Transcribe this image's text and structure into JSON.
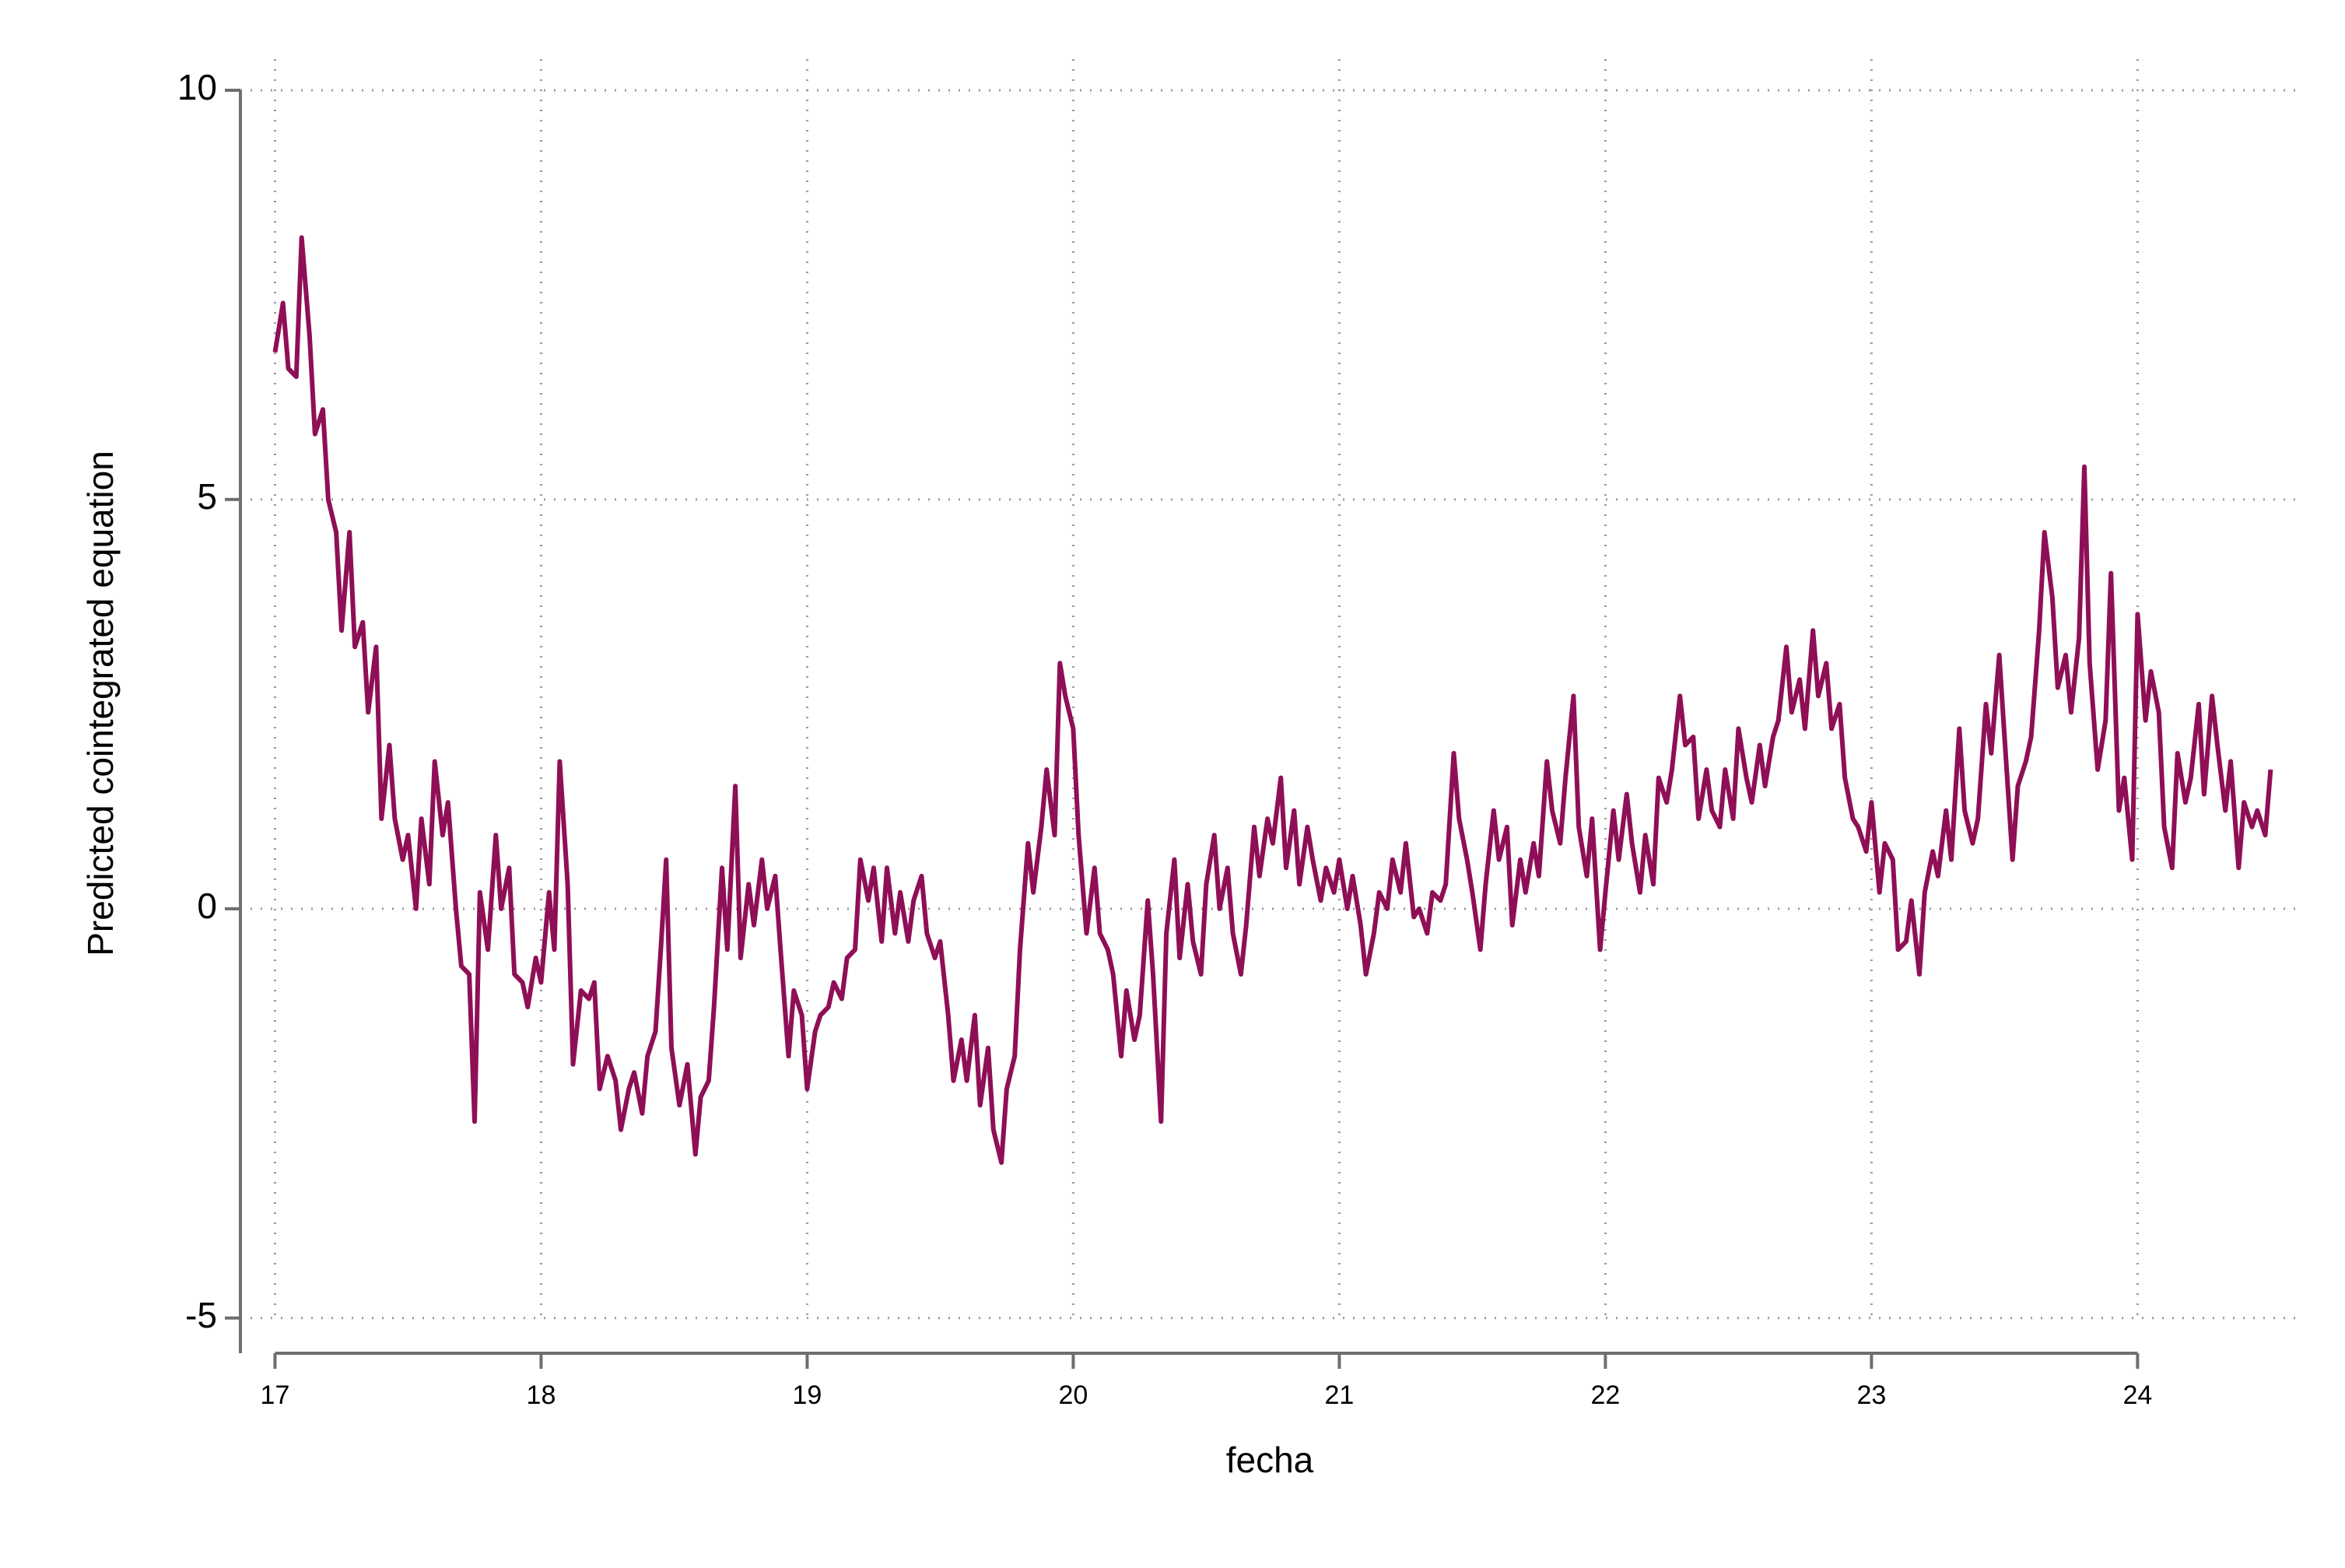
{
  "chart_data": {
    "type": "line",
    "x_label": "fecha",
    "y_label": "Predicted cointegrated equation",
    "xlim": [
      16.87,
      24.61
    ],
    "ylim": [
      -5.43,
      10
    ],
    "xticks": [
      17,
      18,
      19,
      20,
      21,
      22,
      23,
      24
    ],
    "yticks": [
      -5,
      0,
      5,
      10
    ],
    "grid": true,
    "series": [
      {
        "color": "#8f0f56",
        "x": [
          17.0,
          17.03,
          17.05,
          17.08,
          17.1,
          17.13,
          17.15,
          17.18,
          17.2,
          17.23,
          17.25,
          17.28,
          17.3,
          17.33,
          17.35,
          17.38,
          17.4,
          17.43,
          17.45,
          17.48,
          17.5,
          17.53,
          17.55,
          17.58,
          17.6,
          17.63,
          17.65,
          17.68,
          17.7,
          17.73,
          17.75,
          17.77,
          17.8,
          17.83,
          17.85,
          17.88,
          17.9,
          17.93,
          17.95,
          17.98,
          18.0,
          18.03,
          18.05,
          18.07,
          18.1,
          18.12,
          18.15,
          18.18,
          18.2,
          18.22,
          18.25,
          18.28,
          18.3,
          18.33,
          18.35,
          18.38,
          18.4,
          18.43,
          18.45,
          18.47,
          18.49,
          18.52,
          18.55,
          18.58,
          18.6,
          18.63,
          18.65,
          18.68,
          18.7,
          18.73,
          18.75,
          18.78,
          18.8,
          18.83,
          18.85,
          18.88,
          18.9,
          18.93,
          18.95,
          18.98,
          19.0,
          19.03,
          19.05,
          19.08,
          19.1,
          19.13,
          19.15,
          19.18,
          19.2,
          19.23,
          19.25,
          19.28,
          19.3,
          19.33,
          19.35,
          19.38,
          19.4,
          19.43,
          19.45,
          19.48,
          19.5,
          19.53,
          19.55,
          19.58,
          19.6,
          19.63,
          19.65,
          19.68,
          19.7,
          19.73,
          19.75,
          19.78,
          19.8,
          19.83,
          19.85,
          19.88,
          19.9,
          19.93,
          19.95,
          19.97,
          20.0,
          20.02,
          20.05,
          20.08,
          20.1,
          20.13,
          20.15,
          20.18,
          20.2,
          20.23,
          20.25,
          20.28,
          20.3,
          20.33,
          20.35,
          20.38,
          20.4,
          20.43,
          20.45,
          20.48,
          20.5,
          20.53,
          20.55,
          20.58,
          20.6,
          20.63,
          20.65,
          20.68,
          20.7,
          20.73,
          20.75,
          20.78,
          20.8,
          20.83,
          20.85,
          20.88,
          20.9,
          20.93,
          20.95,
          20.98,
          21.0,
          21.03,
          21.05,
          21.08,
          21.1,
          21.13,
          21.15,
          21.18,
          21.2,
          21.23,
          21.25,
          21.28,
          21.3,
          21.33,
          21.35,
          21.38,
          21.4,
          21.43,
          21.45,
          21.48,
          21.5,
          21.53,
          21.55,
          21.58,
          21.6,
          21.63,
          21.65,
          21.68,
          21.7,
          21.73,
          21.75,
          21.78,
          21.8,
          21.83,
          21.85,
          21.88,
          21.9,
          21.93,
          21.95,
          21.98,
          22.0,
          22.03,
          22.05,
          22.08,
          22.1,
          22.13,
          22.15,
          22.18,
          22.2,
          22.23,
          22.25,
          22.28,
          22.3,
          22.33,
          22.35,
          22.38,
          22.4,
          22.43,
          22.45,
          22.48,
          22.5,
          22.53,
          22.55,
          22.58,
          22.6,
          22.63,
          22.65,
          22.68,
          22.7,
          22.73,
          22.75,
          22.78,
          22.8,
          22.83,
          22.85,
          22.88,
          22.9,
          22.93,
          22.95,
          22.98,
          23.0,
          23.03,
          23.05,
          23.08,
          23.1,
          23.13,
          23.15,
          23.18,
          23.2,
          23.23,
          23.25,
          23.28,
          23.3,
          23.33,
          23.35,
          23.38,
          23.4,
          23.43,
          23.45,
          23.48,
          23.5,
          23.53,
          23.55,
          23.58,
          23.6,
          23.63,
          23.65,
          23.68,
          23.7,
          23.73,
          23.75,
          23.78,
          23.8,
          23.82,
          23.85,
          23.88,
          23.9,
          23.93,
          23.95,
          23.98,
          24.0,
          24.03,
          24.05,
          24.08,
          24.1,
          24.13,
          24.15,
          24.18,
          24.2,
          24.23,
          24.25,
          24.28,
          24.3,
          24.33,
          24.35,
          24.38,
          24.4,
          24.43,
          24.45,
          24.48,
          24.5
        ],
        "values": [
          6.8,
          7.4,
          6.6,
          6.5,
          8.2,
          7.0,
          5.8,
          6.1,
          5.0,
          4.6,
          3.4,
          4.6,
          3.2,
          3.5,
          2.4,
          3.2,
          1.1,
          2.0,
          1.1,
          0.6,
          0.9,
          0.0,
          1.1,
          0.3,
          1.8,
          0.9,
          1.3,
          0.0,
          -0.7,
          -0.8,
          -2.6,
          0.2,
          -0.5,
          0.9,
          0.0,
          0.5,
          -0.8,
          -0.9,
          -1.2,
          -0.6,
          -0.9,
          0.2,
          -0.5,
          1.8,
          0.3,
          -1.9,
          -1.0,
          -1.1,
          -0.9,
          -2.2,
          -1.8,
          -2.1,
          -2.7,
          -2.2,
          -2.0,
          -2.5,
          -1.8,
          -1.5,
          -0.5,
          0.6,
          -1.7,
          -2.4,
          -1.9,
          -3.0,
          -2.3,
          -2.1,
          -1.2,
          0.5,
          -0.5,
          1.5,
          -0.6,
          0.3,
          -0.2,
          0.6,
          0.0,
          0.4,
          -0.5,
          -1.8,
          -1.0,
          -1.3,
          -2.2,
          -1.5,
          -1.3,
          -1.2,
          -0.9,
          -1.1,
          -0.6,
          -0.5,
          0.6,
          0.1,
          0.5,
          -0.4,
          0.5,
          -0.3,
          0.2,
          -0.4,
          0.1,
          0.4,
          -0.3,
          -0.6,
          -0.4,
          -1.3,
          -2.1,
          -1.6,
          -2.1,
          -1.3,
          -2.4,
          -1.7,
          -2.7,
          -3.1,
          -2.2,
          -1.8,
          -0.5,
          0.8,
          0.2,
          1.0,
          1.7,
          0.9,
          3.0,
          2.6,
          2.2,
          0.9,
          -0.3,
          0.5,
          -0.3,
          -0.5,
          -0.8,
          -1.8,
          -1.0,
          -1.6,
          -1.3,
          0.1,
          -0.8,
          -2.6,
          -0.3,
          0.6,
          -0.6,
          0.3,
          -0.4,
          -0.8,
          0.3,
          0.9,
          0.0,
          0.5,
          -0.3,
          -0.8,
          -0.2,
          1.0,
          0.4,
          1.1,
          0.8,
          1.6,
          0.5,
          1.2,
          0.3,
          1.0,
          0.6,
          0.1,
          0.5,
          0.2,
          0.6,
          0.0,
          0.4,
          -0.2,
          -0.8,
          -0.3,
          0.2,
          0.0,
          0.6,
          0.2,
          0.8,
          -0.1,
          0.0,
          -0.3,
          0.2,
          0.1,
          0.3,
          1.9,
          1.1,
          0.6,
          0.2,
          -0.5,
          0.3,
          1.2,
          0.6,
          1.0,
          -0.2,
          0.6,
          0.2,
          0.8,
          0.4,
          1.8,
          1.2,
          0.8,
          1.6,
          2.6,
          1.0,
          0.4,
          1.1,
          -0.5,
          0.2,
          1.2,
          0.6,
          1.4,
          0.8,
          0.2,
          0.9,
          0.3,
          1.6,
          1.3,
          1.7,
          2.6,
          2.0,
          2.1,
          1.1,
          1.7,
          1.2,
          1.0,
          1.7,
          1.1,
          2.2,
          1.6,
          1.3,
          2.0,
          1.5,
          2.1,
          2.3,
          3.2,
          2.4,
          2.8,
          2.2,
          3.4,
          2.6,
          3.0,
          2.2,
          2.5,
          1.6,
          1.1,
          1.0,
          0.7,
          1.3,
          0.2,
          0.8,
          0.6,
          -0.5,
          -0.4,
          0.1,
          -0.8,
          0.2,
          0.7,
          0.4,
          1.2,
          0.6,
          2.2,
          1.2,
          0.8,
          1.1,
          2.5,
          1.9,
          3.1,
          2.1,
          0.6,
          1.5,
          1.8,
          2.1,
          3.4,
          4.6,
          3.8,
          2.7,
          3.1,
          2.4,
          3.3,
          5.4,
          3.0,
          1.7,
          2.3,
          4.1,
          1.2,
          1.6,
          0.6,
          3.6,
          2.3,
          2.9,
          2.4,
          1.0,
          0.5,
          1.9,
          1.3,
          1.6,
          2.5,
          1.4,
          2.6,
          2.0,
          1.2,
          1.8,
          0.5,
          1.3,
          1.0,
          1.2,
          0.9,
          1.7
        ]
      }
    ]
  }
}
